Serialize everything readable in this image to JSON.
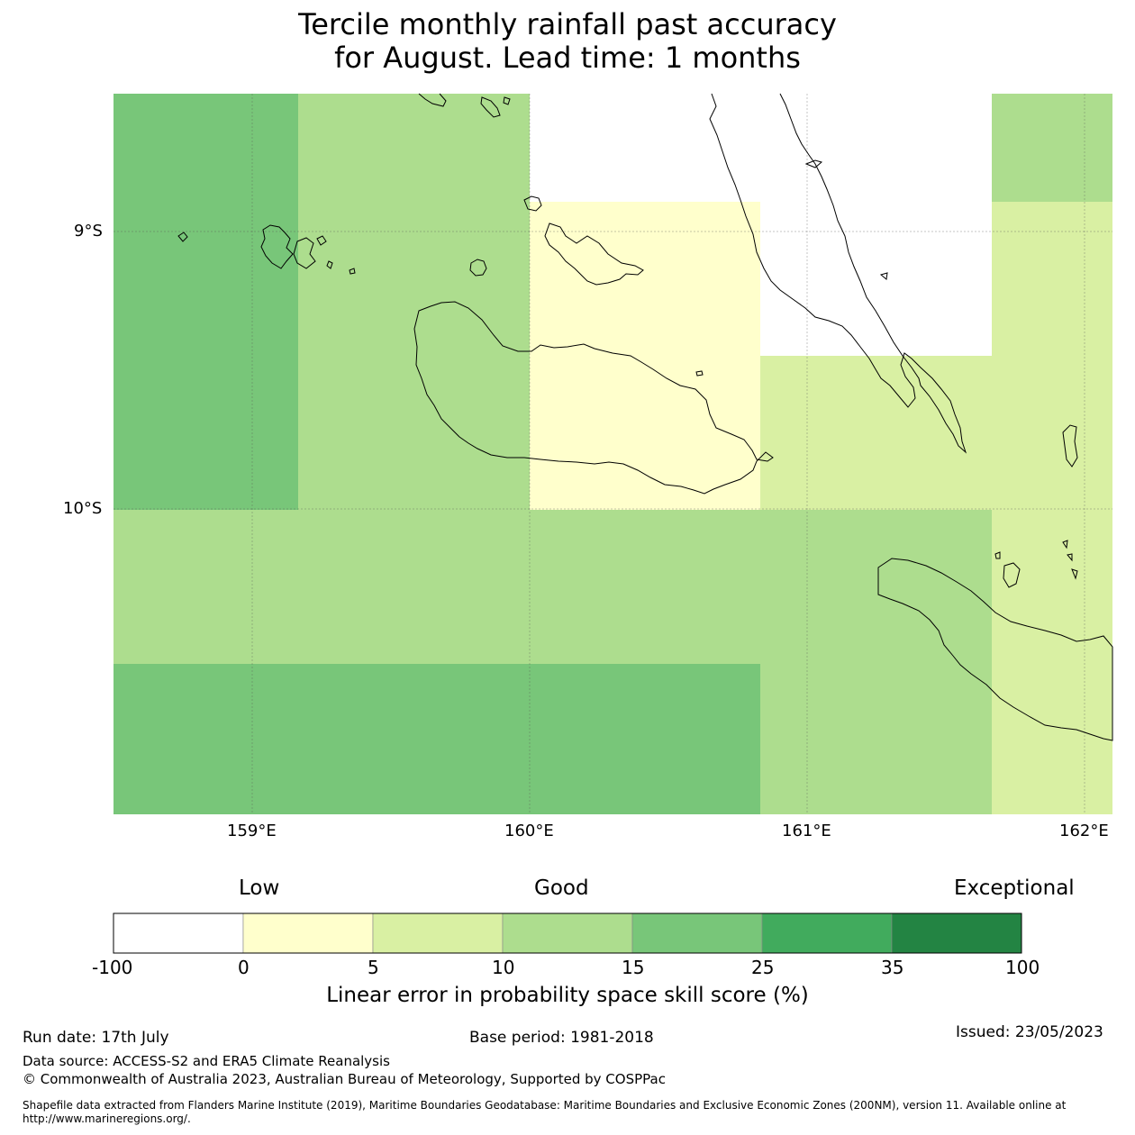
{
  "title": {
    "line1": "Tercile monthly rainfall past accuracy",
    "line2": "for August. Lead time: 1 months"
  },
  "map": {
    "region": "Solomon Islands (Guadalcanal, Malaita, Makira)",
    "lon_range": [
      158.5,
      162.1
    ],
    "lat_range": [
      -11.1,
      -8.5
    ],
    "lon_ticks": [
      {
        "value": 159,
        "label": "159°E"
      },
      {
        "value": 160,
        "label": "160°E"
      },
      {
        "value": 161,
        "label": "161°E"
      },
      {
        "value": 162,
        "label": "162°E"
      }
    ],
    "lat_ticks": [
      {
        "value": -9,
        "label": "9°S"
      },
      {
        "value": -10,
        "label": "10°S"
      }
    ],
    "grid": true
  },
  "colorbar": {
    "categories": [
      "Low",
      "Good",
      "Exceptional"
    ],
    "bounds": [
      "-100",
      "0",
      "5",
      "10",
      "15",
      "25",
      "35",
      "100"
    ],
    "colors": [
      "#ffffff",
      "#ffffcc",
      "#d9f0a3",
      "#addd8e",
      "#78c679",
      "#41ab5d",
      "#238443"
    ],
    "label": "Linear error in probability space skill score (%)"
  },
  "footer": {
    "run_date": "Run date: 17th July",
    "base_period": "Base period: 1981-2018",
    "issued": "Issued: 23/05/2023",
    "data_source": "Data source: ACCESS-S2 and ERA5 Climate Reanalysis",
    "copyright": "© Commonwealth of Australia 2023, Australian Bureau of Meteorology, Supported by COSPPac",
    "shapefile_line1": "Shapefile data extracted from Flanders Marine Institute (2019), Maritime Boundaries Geodatabase: Maritime Boundaries and Exclusive Economic Zones (200NM), version 11. Available online at",
    "shapefile_line2": "http://www.marineregions.org/."
  }
}
